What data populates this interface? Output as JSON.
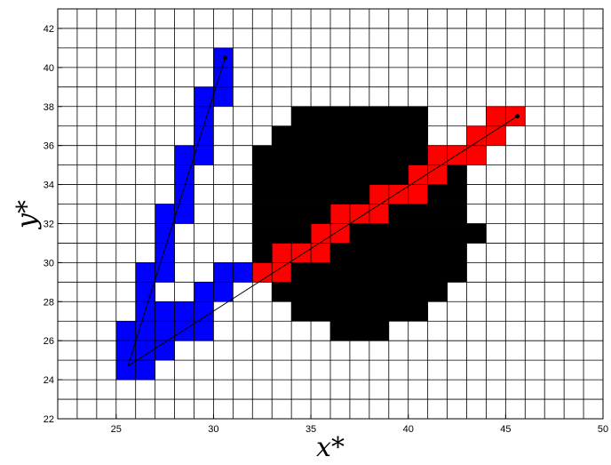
{
  "chart_data": {
    "type": "heatmap",
    "title": "",
    "xlabel": "x*",
    "ylabel": "y*",
    "xlim": [
      22,
      50
    ],
    "ylim": [
      22,
      43
    ],
    "xticks": [
      25,
      30,
      35,
      40,
      45,
      50
    ],
    "yticks": [
      22,
      24,
      26,
      28,
      30,
      32,
      34,
      36,
      38,
      40,
      42
    ],
    "grid": true,
    "grid_cell_size": 1,
    "colors": {
      "obstacle": "#000000",
      "path_blue": "#0000ff",
      "path_red": "#ff0000",
      "grid": "#000000"
    },
    "obstacle_cells": [
      {
        "y": 26,
        "x0": 36,
        "x1": 38
      },
      {
        "y": 27,
        "x0": 34,
        "x1": 40
      },
      {
        "y": 28,
        "x0": 33,
        "x1": 41
      },
      {
        "y": 29,
        "x0": 32,
        "x1": 42
      },
      {
        "y": 30,
        "x0": 32,
        "x1": 42
      },
      {
        "y": 31,
        "x0": 32,
        "x1": 43
      },
      {
        "y": 32,
        "x0": 32,
        "x1": 42
      },
      {
        "y": 33,
        "x0": 32,
        "x1": 42
      },
      {
        "y": 34,
        "x0": 32,
        "x1": 42
      },
      {
        "y": 35,
        "x0": 32,
        "x1": 41
      },
      {
        "y": 36,
        "x0": 33,
        "x1": 40
      },
      {
        "y": 37,
        "x0": 34,
        "x1": 40
      }
    ],
    "blue_cells": [
      [
        25,
        24
      ],
      [
        26,
        24
      ],
      [
        25,
        25
      ],
      [
        26,
        25
      ],
      [
        27,
        25
      ],
      [
        25,
        26
      ],
      [
        26,
        26
      ],
      [
        27,
        26
      ],
      [
        28,
        26
      ],
      [
        29,
        26
      ],
      [
        26,
        27
      ],
      [
        27,
        27
      ],
      [
        28,
        27
      ],
      [
        29,
        27
      ],
      [
        26,
        28
      ],
      [
        29,
        28
      ],
      [
        30,
        28
      ],
      [
        26,
        29
      ],
      [
        27,
        29
      ],
      [
        30,
        29
      ],
      [
        31,
        29
      ],
      [
        27,
        30
      ],
      [
        27,
        31
      ],
      [
        27,
        32
      ],
      [
        28,
        32
      ],
      [
        28,
        33
      ],
      [
        28,
        34
      ],
      [
        28,
        35
      ],
      [
        29,
        35
      ],
      [
        29,
        36
      ],
      [
        29,
        37
      ],
      [
        29,
        38
      ],
      [
        30,
        38
      ],
      [
        30,
        39
      ],
      [
        30,
        40
      ]
    ],
    "red_cells": [
      [
        32,
        29
      ],
      [
        33,
        29
      ],
      [
        33,
        30
      ],
      [
        34,
        30
      ],
      [
        35,
        30
      ],
      [
        35,
        31
      ],
      [
        36,
        31
      ],
      [
        36,
        32
      ],
      [
        37,
        32
      ],
      [
        38,
        32
      ],
      [
        38,
        33
      ],
      [
        39,
        33
      ],
      [
        40,
        33
      ],
      [
        40,
        34
      ],
      [
        41,
        34
      ],
      [
        41,
        35
      ],
      [
        42,
        35
      ],
      [
        43,
        35
      ],
      [
        43,
        36
      ],
      [
        44,
        36
      ],
      [
        44,
        37
      ],
      [
        45,
        37
      ]
    ],
    "series": [
      {
        "points": [
          [
            25.6,
            24.7
          ],
          [
            30.6,
            40.5
          ]
        ]
      },
      {
        "points": [
          [
            25.6,
            24.7
          ],
          [
            45.6,
            37.5
          ]
        ]
      }
    ]
  }
}
